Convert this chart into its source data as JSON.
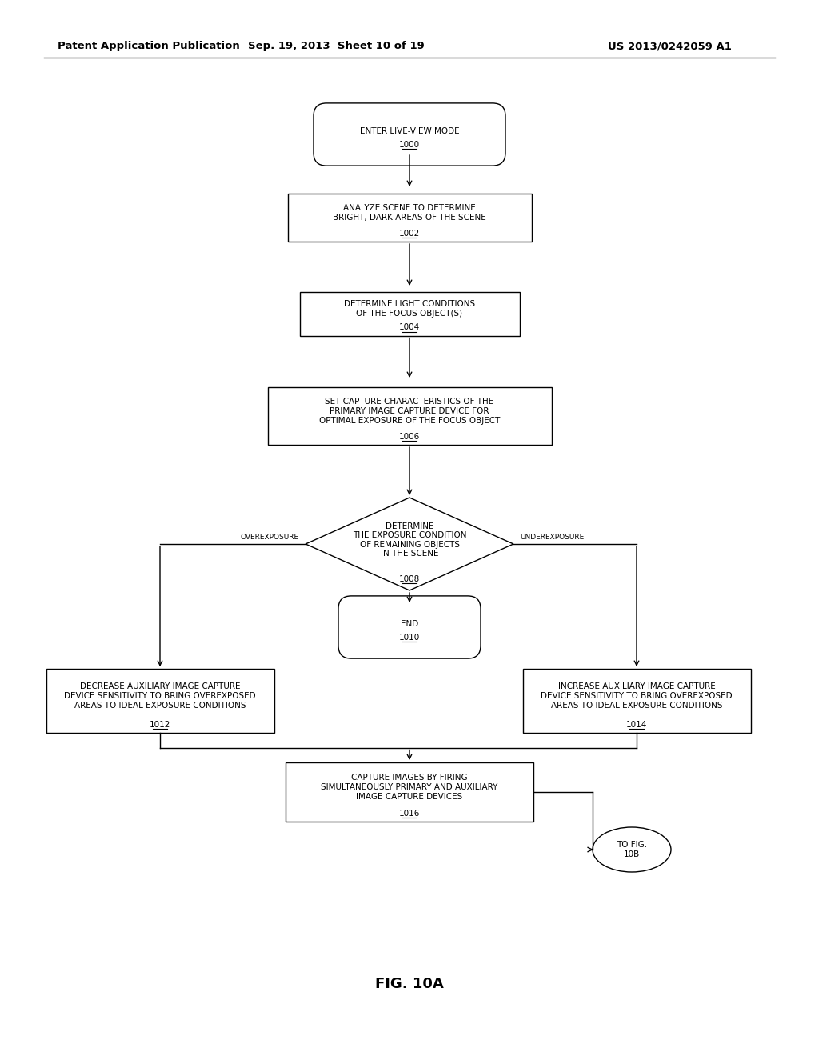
{
  "header_left": "Patent Application Publication",
  "header_mid": "Sep. 19, 2013  Sheet 10 of 19",
  "header_right": "US 2013/0242059 A1",
  "fig_label": "FIG. 10A",
  "background_color": "#ffffff",
  "line_color": "#000000",
  "box_fill": "#ffffff",
  "fs_main": 7.5,
  "fs_header": 9.5,
  "fs_figlabel": 13
}
